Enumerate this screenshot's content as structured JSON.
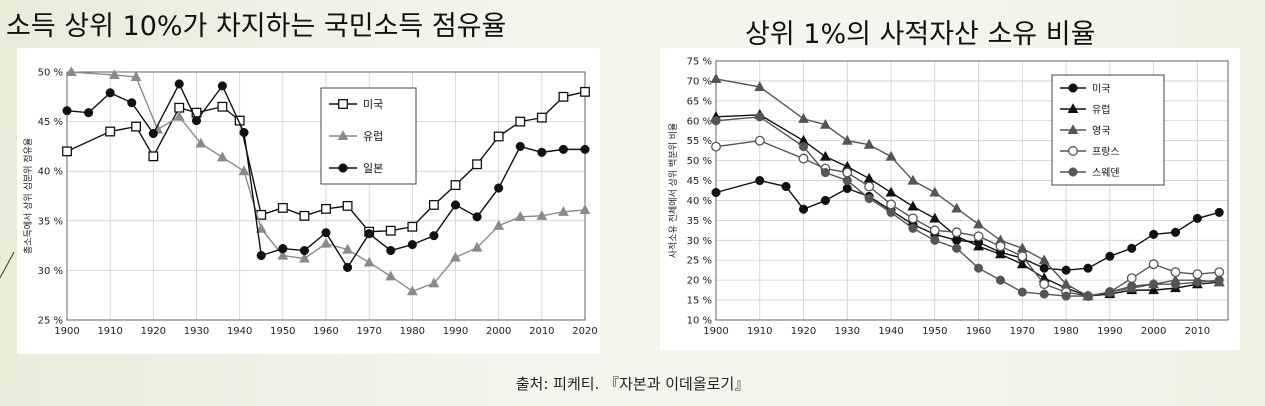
{
  "titles": {
    "left": "소득 상위 10%가 차지하는 국민소득 점유율",
    "right": "상위 1%의 사적자산 소유 비율"
  },
  "source": "출처: 피케티. 『자본과 이데올로기』",
  "chart_data": [
    {
      "type": "line",
      "title": "",
      "xlabel": "",
      "ylabel": "총소득에서 상위 십분위 점유율",
      "xlim": [
        1900,
        2020
      ],
      "ylim": [
        25,
        50
      ],
      "xticks": [
        1900,
        1910,
        1920,
        1930,
        1940,
        1950,
        1960,
        1970,
        1980,
        1990,
        2000,
        2010,
        2020
      ],
      "yticks": [
        25,
        30,
        35,
        40,
        45,
        50
      ],
      "ytick_suffix": " %",
      "grid": true,
      "legend_position": "upper-right",
      "series": [
        {
          "name": "미국",
          "marker": "square-open",
          "color": "#111111",
          "x": [
            1900,
            1910,
            1916,
            1920,
            1926,
            1930,
            1936,
            1940,
            1945,
            1950,
            1955,
            1960,
            1965,
            1970,
            1975,
            1980,
            1985,
            1990,
            1995,
            2000,
            2005,
            2010,
            2015,
            2020
          ],
          "y": [
            42.0,
            44.0,
            44.5,
            41.5,
            46.4,
            45.9,
            46.5,
            45.1,
            35.6,
            36.3,
            35.5,
            36.2,
            36.5,
            33.9,
            34.0,
            34.4,
            36.6,
            38.6,
            40.7,
            43.5,
            45.0,
            45.4,
            47.5,
            48.0
          ]
        },
        {
          "name": "유럽",
          "marker": "triangle",
          "color": "#8a8a8a",
          "x": [
            1901,
            1911,
            1916,
            1921,
            1926,
            1931,
            1936,
            1941,
            1945,
            1950,
            1955,
            1960,
            1965,
            1970,
            1975,
            1980,
            1985,
            1990,
            1995,
            2000,
            2005,
            2010,
            2015,
            2020
          ],
          "y": [
            50.0,
            49.7,
            49.5,
            44.2,
            45.5,
            42.8,
            41.4,
            40.0,
            34.2,
            31.5,
            31.2,
            32.7,
            32.1,
            30.8,
            29.4,
            27.9,
            28.7,
            31.3,
            32.3,
            34.5,
            35.4,
            35.5,
            35.9,
            36.1
          ]
        },
        {
          "name": "일본",
          "marker": "circle-filled",
          "color": "#111111",
          "x": [
            1900,
            1905,
            1910,
            1915,
            1920,
            1926,
            1930,
            1936,
            1941,
            1945,
            1950,
            1955,
            1960,
            1965,
            1970,
            1975,
            1980,
            1985,
            1990,
            1995,
            2000,
            2005,
            2010,
            2015,
            2020
          ],
          "y": [
            46.1,
            45.9,
            47.9,
            46.9,
            43.8,
            48.8,
            45.1,
            48.6,
            43.9,
            31.5,
            32.2,
            32.0,
            33.8,
            30.3,
            33.7,
            32.0,
            32.6,
            33.5,
            36.6,
            35.4,
            38.3,
            42.5,
            41.9,
            42.2,
            42.2
          ]
        }
      ]
    },
    {
      "type": "line",
      "title": "",
      "xlabel": "",
      "ylabel": "사적소유 전체에서 상위 백분위 비율",
      "xlim": [
        1900,
        2017
      ],
      "ylim": [
        10,
        75
      ],
      "xticks": [
        1900,
        1910,
        1920,
        1930,
        1940,
        1950,
        1960,
        1970,
        1980,
        1990,
        2000,
        2010
      ],
      "yticks": [
        10,
        15,
        20,
        25,
        30,
        35,
        40,
        45,
        50,
        55,
        60,
        65,
        70,
        75
      ],
      "ytick_suffix": " %",
      "grid": true,
      "legend_position": "upper-right",
      "series": [
        {
          "name": "미국",
          "marker": "circle-filled",
          "color": "#111111",
          "x": [
            1900,
            1910,
            1916,
            1920,
            1925,
            1930,
            1935,
            1940,
            1945,
            1950,
            1955,
            1960,
            1965,
            1970,
            1975,
            1980,
            1985,
            1990,
            1995,
            2000,
            2005,
            2010,
            2015
          ],
          "y": [
            42,
            45,
            43.5,
            37.8,
            40,
            43,
            41,
            37.5,
            34,
            31.5,
            30,
            29.5,
            27,
            25.5,
            23,
            22.5,
            23,
            26,
            28,
            31.5,
            32,
            35.5,
            37
          ]
        },
        {
          "name": "유럽",
          "marker": "triangle",
          "color": "#111111",
          "x": [
            1900,
            1910,
            1920,
            1925,
            1930,
            1935,
            1940,
            1945,
            1950,
            1955,
            1960,
            1965,
            1970,
            1975,
            1980,
            1985,
            1990,
            1995,
            2000,
            2005,
            2010,
            2015
          ],
          "y": [
            61,
            61.5,
            55,
            51,
            48.5,
            45.5,
            42,
            38.5,
            35.5,
            31,
            28.5,
            26.5,
            24,
            20.5,
            18,
            16,
            16.5,
            17.5,
            17.5,
            18,
            19,
            19.5
          ]
        },
        {
          "name": "영국",
          "marker": "triangle",
          "color": "#555555",
          "x": [
            1900,
            1910,
            1920,
            1925,
            1930,
            1935,
            1940,
            1945,
            1950,
            1955,
            1960,
            1965,
            1970,
            1975,
            1980,
            1985,
            1990,
            1995,
            2000,
            2005,
            2010,
            2015
          ],
          "y": [
            70.5,
            68.5,
            60.5,
            59,
            55,
            54,
            51,
            45,
            42,
            38,
            34,
            30,
            28,
            25,
            19,
            16,
            17,
            18,
            19,
            20,
            20,
            19.5
          ]
        },
        {
          "name": "프랑스",
          "marker": "circle-open",
          "color": "#555555",
          "x": [
            1900,
            1910,
            1920,
            1925,
            1930,
            1935,
            1940,
            1945,
            1950,
            1955,
            1960,
            1965,
            1970,
            1975,
            1980,
            1985,
            1990,
            1995,
            2000,
            2005,
            2010,
            2015
          ],
          "y": [
            53.5,
            55,
            50.5,
            48,
            47,
            43.5,
            39,
            35.5,
            32.5,
            32,
            31,
            28.5,
            26,
            19,
            17,
            16,
            17,
            20.5,
            24,
            22,
            21.5,
            22
          ]
        },
        {
          "name": "스웨덴",
          "marker": "circle-filled",
          "color": "#555555",
          "x": [
            1900,
            1910,
            1920,
            1925,
            1930,
            1935,
            1940,
            1945,
            1950,
            1955,
            1960,
            1965,
            1970,
            1975,
            1980,
            1985,
            1990,
            1995,
            2000,
            2005,
            2010,
            2015
          ],
          "y": [
            60,
            61,
            53.5,
            47,
            45,
            40.5,
            37,
            33,
            30,
            28,
            23,
            20,
            17,
            16.5,
            16,
            16,
            17,
            18.5,
            19,
            19,
            19.5,
            20
          ]
        }
      ]
    }
  ]
}
